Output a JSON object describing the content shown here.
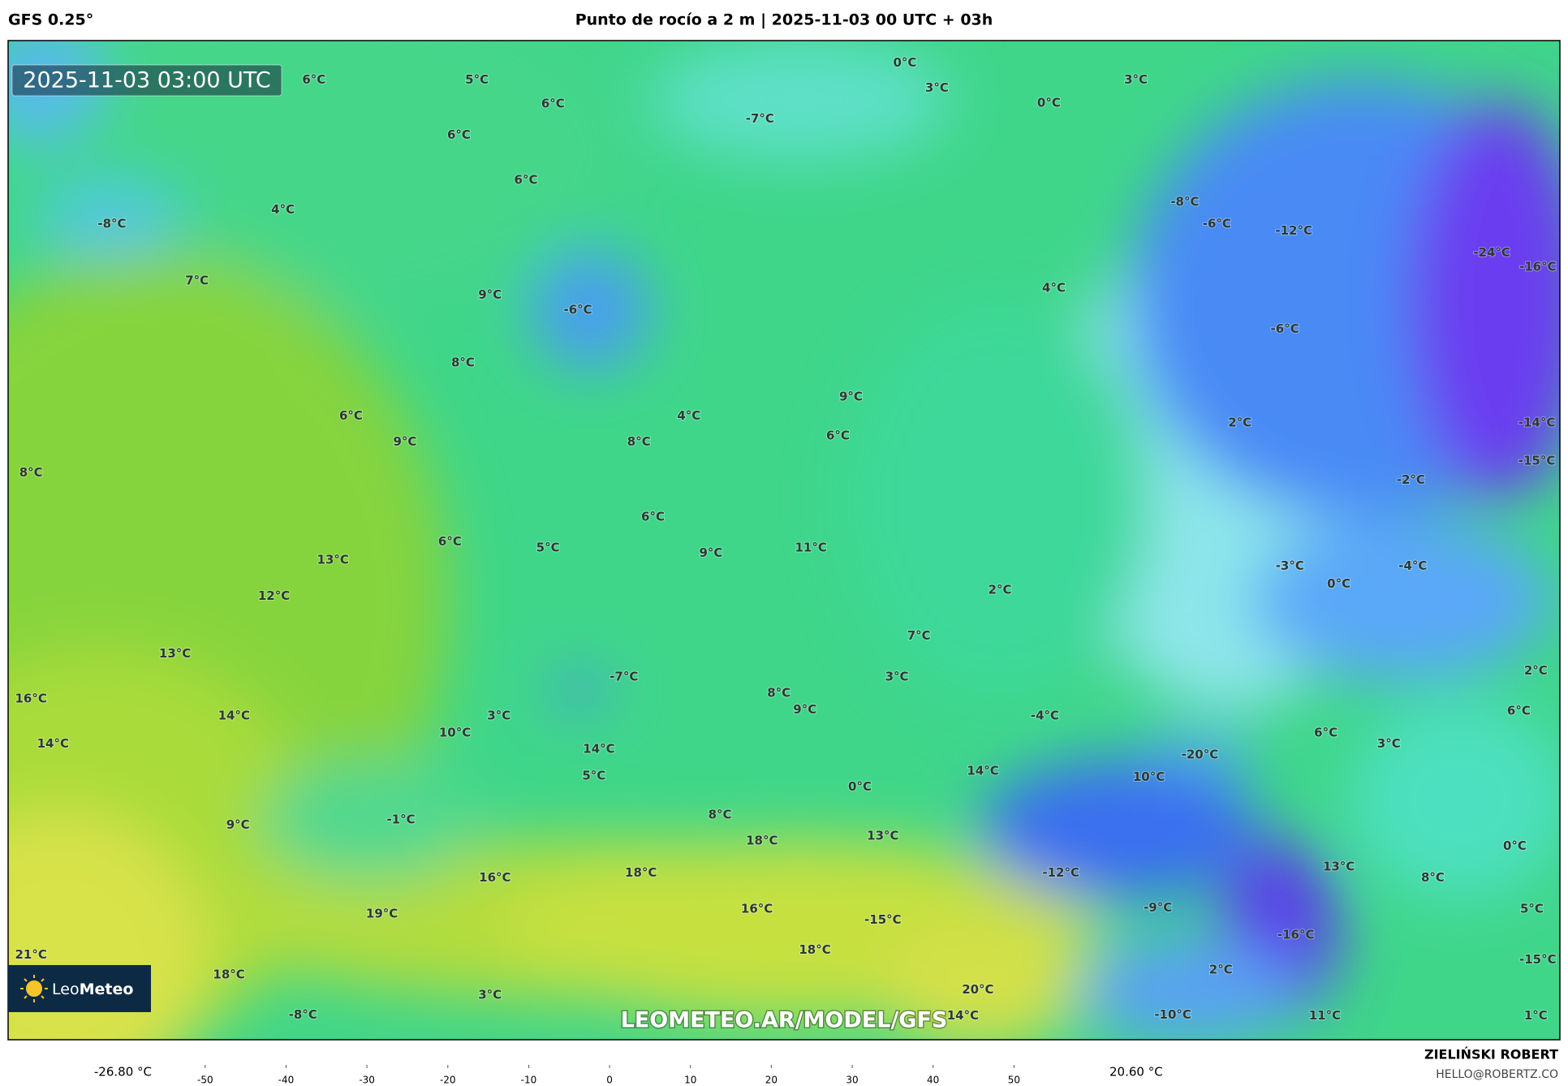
{
  "header": {
    "model": "GFS 0.25°",
    "title": "Punto de rocío a 2 m | 2025-11-03 00 UTC + 03h"
  },
  "map": {
    "timestamp": "2025-11-03 03:00 UTC",
    "watermark": "LEOMETEO.AR/MODEL/GFS",
    "logo_prefix": "Leo",
    "logo_name": "Meteo",
    "labels": [
      "6°C",
      "5°C",
      "0°C",
      "3°C",
      "0°C",
      "3°C",
      "6°C",
      "-7°C",
      "6°C",
      "6°C",
      "4°C",
      "-8°C",
      "-8°C",
      "-6°C",
      "-12°C",
      "-24°C",
      "-16°C",
      "7°C",
      "9°C",
      "-6°C",
      "4°C",
      "-6°C",
      "8°C",
      "9°C",
      "6°C",
      "4°C",
      "2°C",
      "-14°C",
      "9°C",
      "8°C",
      "6°C",
      "-15°C",
      "8°C",
      "-2°C",
      "6°C",
      "6°C",
      "5°C",
      "9°C",
      "11°C",
      "13°C",
      "-3°C",
      "0°C",
      "-4°C",
      "2°C",
      "12°C",
      "7°C",
      "13°C",
      "3°C",
      "2°C",
      "-7°C",
      "16°C",
      "8°C",
      "9°C",
      "14°C",
      "3°C",
      "-4°C",
      "6°C",
      "10°C",
      "6°C",
      "3°C",
      "14°C",
      "14°C",
      "-20°C",
      "5°C",
      "14°C",
      "10°C",
      "0°C",
      "9°C",
      "-1°C",
      "8°C",
      "18°C",
      "13°C",
      "0°C",
      "13°C",
      "-12°C",
      "18°C",
      "16°C",
      "8°C",
      "19°C",
      "16°C",
      "-9°C",
      "-15°C",
      "5°C",
      "-16°C",
      "18°C",
      "21°C",
      "-15°C",
      "2°C",
      "18°C",
      "3°C",
      "20°C",
      "-8°C",
      "14°C",
      "-10°C",
      "11°C",
      "1°C"
    ]
  },
  "colorbar": {
    "lim": [
      -55,
      60
    ],
    "ticks": [
      -50,
      -40,
      -30,
      -20,
      -10,
      0,
      10,
      20,
      30,
      40,
      50
    ],
    "min_label": "-26.80 °C",
    "max_label": "20.60 °C"
  },
  "footer": {
    "author": "ZIELIŃSKI ROBERT",
    "email": "HELLO@ROBERTZ.CO"
  }
}
